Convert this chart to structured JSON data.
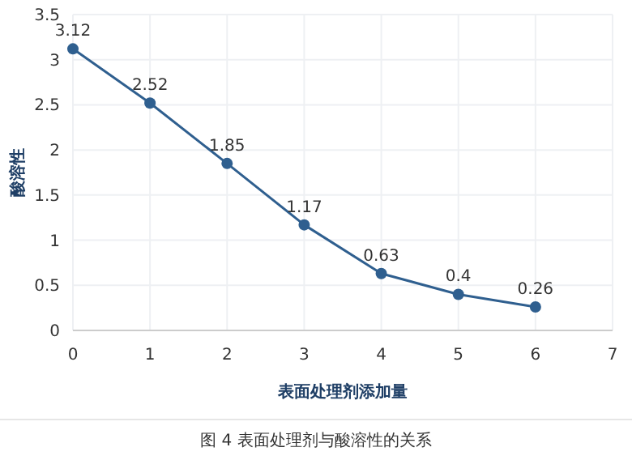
{
  "chart_data": {
    "type": "line",
    "xlabel": "表面处理剂添加量",
    "ylabel": "酸溶性",
    "annotations": [
      "图 4 表面处理剂与酸溶性的关系"
    ],
    "x": [
      0,
      1,
      2,
      3,
      4,
      5,
      6
    ],
    "series": [
      {
        "color": "#2f5f8f",
        "values": [
          3.12,
          2.52,
          1.85,
          1.17,
          0.63,
          0.4,
          0.26
        ]
      }
    ],
    "xlim": [
      0,
      7
    ],
    "xticks": [
      0,
      1,
      2,
      3,
      4,
      5,
      6,
      7
    ],
    "ylim": [
      0,
      3.5
    ],
    "yticks": [
      0,
      0.5,
      1,
      1.5,
      2,
      2.5,
      3,
      3.5
    ],
    "grid": true,
    "marker": "circle",
    "line_style": "solid",
    "data_labels": true
  }
}
